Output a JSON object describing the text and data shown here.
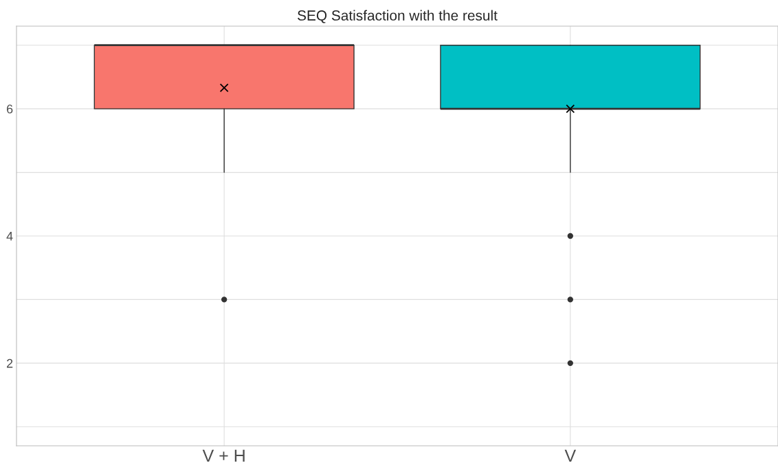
{
  "chart_data": {
    "type": "box",
    "title": "SEQ Satisfaction with the result",
    "categories": [
      "V + H",
      "V"
    ],
    "colors": [
      "#f8766d",
      "#00bfc4"
    ],
    "boxes": [
      {
        "low": 5,
        "q1": 6,
        "median": 7,
        "q3": 7,
        "high": 7,
        "mean": 6.33,
        "outliers": [
          3
        ]
      },
      {
        "low": 5,
        "q1": 6,
        "median": 6,
        "q3": 7,
        "high": 7,
        "mean": 6.0,
        "outliers": [
          4,
          3,
          2
        ]
      }
    ],
    "ylim": [
      0.7,
      7.3
    ],
    "yticks": [
      {
        "value": 1,
        "label": null
      },
      2,
      {
        "value": 3,
        "label": null
      },
      4,
      {
        "value": 5,
        "label": null
      },
      6,
      {
        "value": 7,
        "label": null
      }
    ],
    "grid": true
  }
}
